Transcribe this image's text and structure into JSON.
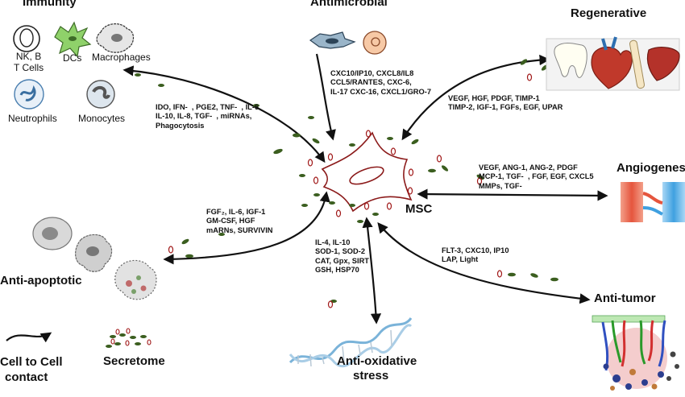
{
  "categories": {
    "immunity": "Immunity",
    "antimicrobial": "Antimicrobial",
    "regenerative": "Regenerative",
    "angiogenesis": "Angiogenes",
    "anti_apoptotic": "Anti-apoptotic",
    "anti_tumor": "Anti-tumor",
    "anti_oxidative_line1": "Anti-oxidative",
    "anti_oxidative_line2": "stress"
  },
  "center": {
    "label": "MSC"
  },
  "immune_cells": {
    "nk_b_line1": "NK, B",
    "nk_b_line2": "T Cells",
    "dcs": "DCs",
    "macrophages": "Macrophages",
    "neutrophils": "Neutrophils",
    "monocytes": "Monocytes"
  },
  "factors": {
    "immunity": [
      "IDO, IFN-  , PGE2, TNF-  , IL-6",
      "IL-10, IL-8, TGF-  , miRNAs,",
      "Phagocytosis"
    ],
    "antimicrobial": [
      "CXC10/IP10, CXCL8/IL8",
      "CCL5/RANTES, CXC-6,",
      "IL-17 CXC-16, CXCL1/GRO-7"
    ],
    "regenerative": [
      "VEGF, HGF, PDGF, TIMP-1",
      "TIMP-2, IGF-1, FGFs, EGF, UPAR"
    ],
    "angiogenesis": [
      "VEGF, ANG-1, ANG-2, PDGF",
      "MCP-1, TGF-  , FGF, EGF, CXCL5",
      "MMPs, TGF-"
    ],
    "anti_apoptotic": [
      "FGF₂, IL-6, IGF-1",
      "GM-CSF, HGF",
      "mARNs, SURVIVIN"
    ],
    "anti_oxidative": [
      "IL-4, IL-10",
      "SOD-1, SOD-2",
      "CAT, Gpx, SIRT",
      "GSH, HSP70"
    ],
    "anti_tumor": [
      "FLT-3, CXC10, IP10",
      "LAP, Light"
    ]
  },
  "legend": {
    "contact_line1": "Cell to Cell",
    "contact_line2": "contact",
    "secretome": "Secretome"
  },
  "colors": {
    "arrow": "#111111",
    "cell_outline": "#8b1a1a",
    "secretome_green": "#3b5e1f",
    "secretome_red": "#a01818",
    "dc_green": "#8fd16a",
    "heart_red": "#c0392b",
    "vessel_red": "#e5553d",
    "vessel_blue": "#3fa0e0",
    "tumor_pink": "#f2c4c4",
    "dna_blue": "#7ab3d9"
  }
}
